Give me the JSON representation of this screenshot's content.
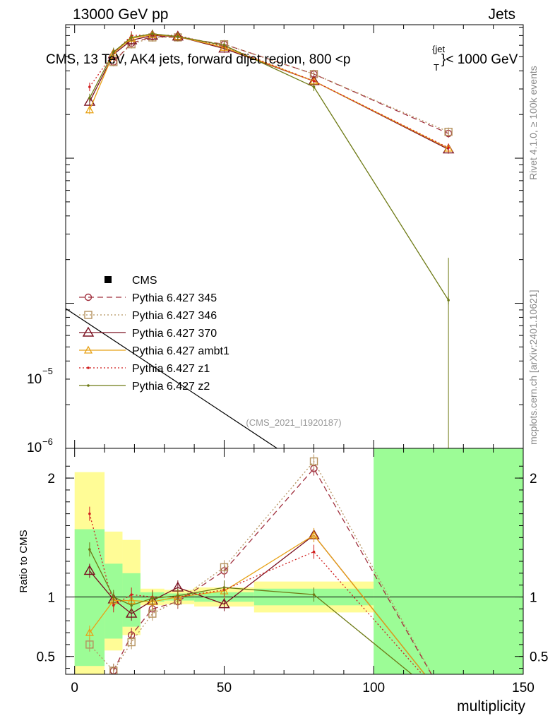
{
  "header": {
    "left": "13000 GeV pp",
    "right": "Jets"
  },
  "side_labels": {
    "rivet": "Rivet 4.1.0, ≥ 100k events",
    "mcplots": "mcplots.cern.ch [arXiv:2401.10621]"
  },
  "chart_data": [
    {
      "type": "line",
      "title": "CMS, 13 TeV, AK4 jets, forward dijet region, 800 <p_T^{jet}< 1000 GeV",
      "title_parts": {
        "main": "CMS, 13 TeV, AK4 jets, forward dijet region, 800 <p",
        "sup": "{jet",
        "sub": "T",
        "tail": "}< 1000 GeV"
      },
      "watermark": "(CMS_2021_I1920187)",
      "yscale": "log",
      "xlim": [
        -3,
        150
      ],
      "ylim_exp": [
        -6,
        null
      ],
      "ytick_labels": [
        {
          "base": "10",
          "exp": "−5"
        },
        {
          "base": "10",
          "exp": "−6"
        }
      ],
      "legend_placement": "center-left",
      "x": [
        5,
        13,
        19,
        26,
        34.5,
        50,
        80,
        125
      ],
      "series": [
        {
          "name": "Pythia 6.427 345",
          "color": "#a0303e",
          "dash": "8,5",
          "marker": "circle-open",
          "values": [
            null,
            0.00046,
            0.00062,
            0.00069,
            0.00068,
            0.00061,
            0.00038,
            0.000148
          ]
        },
        {
          "name": "Pythia 6.427 346",
          "color": "#b5925e",
          "dash": "2,3",
          "marker": "square-open",
          "values": [
            null,
            0.00046,
            0.00061,
            0.00068,
            0.00068,
            0.00061,
            0.00038,
            0.000152
          ]
        },
        {
          "name": "Pythia 6.427 370",
          "color": "#7a1020",
          "dash": "",
          "marker": "triangle-open",
          "values": [
            0.000245,
            0.00052,
            0.00065,
            0.0007,
            0.00069,
            0.00057,
            0.00034,
            0.000115
          ]
        },
        {
          "name": "Pythia 6.427 ambt1",
          "color": "#e8a217",
          "dash": "",
          "marker": "triangle-open-small",
          "values": [
            0.000215,
            0.00053,
            0.00067,
            0.00071,
            0.00069,
            0.00058,
            0.00034,
            0.000117
          ]
        },
        {
          "name": "Pythia 6.427 z1",
          "color": "#d11f1f",
          "dash": "2,3",
          "marker": "dot",
          "values": [
            0.00031,
            0.00053,
            0.0007,
            0.00071,
            0.0007,
            0.00059,
            0.00034,
            0.000118
          ]
        },
        {
          "name": "Pythia 6.427 z2",
          "color": "#6e7a15",
          "dash": "",
          "marker": "dot",
          "values": [
            0.00026,
            0.00054,
            0.00068,
            0.00072,
            0.00069,
            0.0006,
            0.00031,
            1.05e-05
          ]
        }
      ],
      "reference": {
        "name": "CMS",
        "marker": "square-filled"
      }
    },
    {
      "type": "line",
      "ylabel": "Ratio to CMS",
      "xlabel": "multiplicity",
      "xlim": [
        -3,
        150
      ],
      "ylim": [
        0.35,
        2.25
      ],
      "xticks": [
        0,
        50,
        100,
        150
      ],
      "yticks": [
        0.5,
        1,
        2
      ],
      "ytick_labels": [
        "0.5",
        "1",
        "2"
      ],
      "bands": [
        {
          "x0": 0,
          "x1": 10,
          "inner": [
            0.42,
            1.57
          ],
          "outer": [
            0.35,
            2.05
          ]
        },
        {
          "x0": 10,
          "x1": 16,
          "inner": [
            0.65,
            1.28
          ],
          "outer": [
            0.55,
            1.55
          ]
        },
        {
          "x0": 16,
          "x1": 22,
          "inner": [
            0.75,
            1.2
          ],
          "outer": [
            0.68,
            1.48
          ]
        },
        {
          "x0": 22,
          "x1": 30,
          "inner": [
            0.96,
            1.04
          ],
          "outer": [
            0.93,
            1.07
          ]
        },
        {
          "x0": 30,
          "x1": 40,
          "inner": [
            0.97,
            1.03
          ],
          "outer": [
            0.94,
            1.06
          ]
        },
        {
          "x0": 40,
          "x1": 60,
          "inner": [
            0.96,
            1.04
          ],
          "outer": [
            0.92,
            1.08
          ]
        },
        {
          "x0": 60,
          "x1": 100,
          "inner": [
            0.93,
            1.07
          ],
          "outer": [
            0.87,
            1.13
          ]
        },
        {
          "x0": 100,
          "x1": 150,
          "inner": [
            0.35,
            2.25
          ],
          "outer": [
            0.35,
            2.25
          ]
        }
      ],
      "x": [
        5,
        13,
        19,
        26,
        34.5,
        50,
        80,
        125
      ],
      "series": [
        {
          "name": "Pythia 6.427 345",
          "values": [
            null,
            0.38,
            0.68,
            0.9,
            0.96,
            1.22,
            2.08,
            0.1
          ]
        },
        {
          "name": "Pythia 6.427 346",
          "values": [
            0.6,
            0.38,
            0.62,
            0.86,
            0.97,
            1.25,
            2.14,
            0.1
          ]
        },
        {
          "name": "Pythia 6.427 370",
          "values": [
            1.22,
            0.98,
            0.86,
            0.97,
            1.08,
            0.94,
            1.52,
            0.1
          ]
        },
        {
          "name": "Pythia 6.427 ambt1",
          "values": [
            0.7,
            0.97,
            0.97,
            0.96,
            1.0,
            1.05,
            1.52,
            0.1
          ]
        },
        {
          "name": "Pythia 6.427 z1",
          "values": [
            1.7,
            0.93,
            1.02,
            1.0,
            1.0,
            1.06,
            1.38,
            0.1
          ]
        },
        {
          "name": "Pythia 6.427 z2",
          "values": [
            1.4,
            1.0,
            0.93,
            0.99,
            1.01,
            1.08,
            1.02,
            0.1
          ]
        }
      ]
    }
  ]
}
